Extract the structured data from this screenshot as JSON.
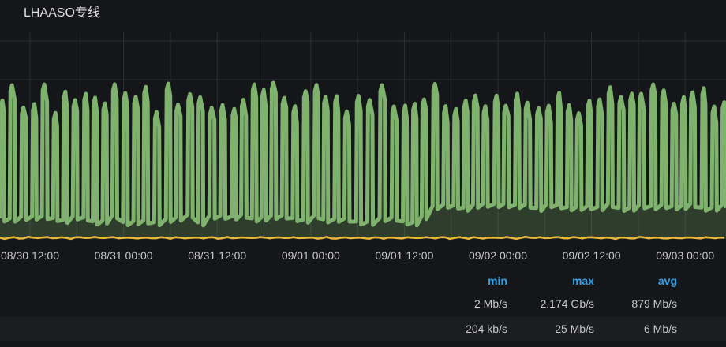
{
  "panel": {
    "title": "LHAASO专线"
  },
  "chart_data": {
    "type": "area",
    "title": "LHAASO专线",
    "x_ticks": [
      "08/30 12:00",
      "08/31 00:00",
      "08/31 12:00",
      "09/01 00:00",
      "09/01 12:00",
      "09/02 00:00",
      "09/02 12:00",
      "09/03 00:00"
    ],
    "grid": true,
    "legend_placement": "bottom",
    "legend_columns": [
      "min",
      "max",
      "avg"
    ],
    "series": [
      {
        "color": "#7eb26d",
        "stats": {
          "min": "2 Mb/s",
          "max": "2.174 Gb/s",
          "avg": "879 Mb/s"
        },
        "pattern": "periodic bursts, roughly hourly, peaks near max"
      },
      {
        "color": "#eab839",
        "stats": {
          "min": "204 kb/s",
          "max": "25 Mb/s",
          "avg": "6 Mb/s"
        },
        "pattern": "near-flat low line"
      }
    ]
  },
  "colors": {
    "background": "#141619",
    "legend_header": "#33a2e5",
    "grid": "#2c2f33"
  }
}
